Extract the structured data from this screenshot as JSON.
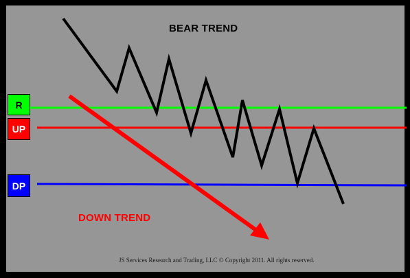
{
  "title": "BEAR TREND",
  "down_trend_label": "DOWN TREND",
  "copyright": "JS Services Research  and Trading,  LLC © Copyright 2011. All rights reserved.",
  "levels": {
    "r": {
      "label": "R",
      "color": "#00ff00"
    },
    "up": {
      "label": "UP",
      "color": "#ff0000"
    },
    "dp": {
      "label": "DP",
      "color": "#0000ff"
    }
  },
  "colors": {
    "background": "#969696",
    "border": "#000000",
    "price_path": "#000000",
    "down_trend_arrow": "#ff0000",
    "down_trend_text": "#ff0000"
  }
}
